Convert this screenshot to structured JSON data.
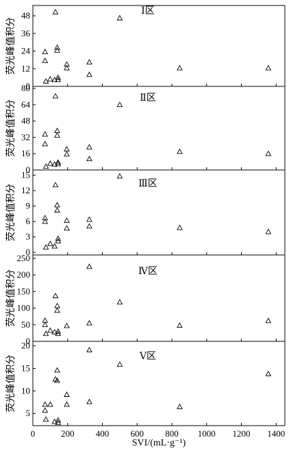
{
  "chart_data": [
    {
      "type": "scatter",
      "panel_label": "Ⅰ区",
      "ylabel": "荧光峰值积分",
      "xlim": [
        0,
        1450
      ],
      "ylim": [
        0,
        55
      ],
      "yticks": [
        0,
        12,
        24,
        36,
        48
      ],
      "marker": "triangle",
      "points": [
        {
          "x": 70,
          "y": 17.5
        },
        {
          "x": 70,
          "y": 23.5
        },
        {
          "x": 75,
          "y": 3.5
        },
        {
          "x": 100,
          "y": 5.0
        },
        {
          "x": 125,
          "y": 4.5
        },
        {
          "x": 130,
          "y": 50.5
        },
        {
          "x": 140,
          "y": 26.5
        },
        {
          "x": 140,
          "y": 24.5
        },
        {
          "x": 145,
          "y": 4.5
        },
        {
          "x": 145,
          "y": 6.0
        },
        {
          "x": 195,
          "y": 15.0
        },
        {
          "x": 195,
          "y": 12.5
        },
        {
          "x": 325,
          "y": 16.5
        },
        {
          "x": 325,
          "y": 8.0
        },
        {
          "x": 500,
          "y": 46.5
        },
        {
          "x": 845,
          "y": 12.5
        },
        {
          "x": 1355,
          "y": 12.5
        }
      ]
    },
    {
      "type": "scatter",
      "panel_label": "Ⅱ区",
      "ylabel": "荧光峰值积分",
      "xlim": [
        0,
        1450
      ],
      "ylim": [
        0,
        82
      ],
      "yticks": [
        0,
        16,
        32,
        48,
        64,
        80
      ],
      "marker": "triangle",
      "points": [
        {
          "x": 70,
          "y": 25.5
        },
        {
          "x": 70,
          "y": 35.0
        },
        {
          "x": 75,
          "y": 3.5
        },
        {
          "x": 100,
          "y": 6.5
        },
        {
          "x": 125,
          "y": 5.5
        },
        {
          "x": 130,
          "y": 72.5
        },
        {
          "x": 140,
          "y": 38.5
        },
        {
          "x": 140,
          "y": 34.0
        },
        {
          "x": 145,
          "y": 6.0
        },
        {
          "x": 145,
          "y": 7.5
        },
        {
          "x": 195,
          "y": 20.5
        },
        {
          "x": 195,
          "y": 15.5
        },
        {
          "x": 325,
          "y": 22.5
        },
        {
          "x": 325,
          "y": 11.0
        },
        {
          "x": 500,
          "y": 64.0
        },
        {
          "x": 845,
          "y": 18.0
        },
        {
          "x": 1355,
          "y": 16.0
        }
      ]
    },
    {
      "type": "scatter",
      "panel_label": "Ⅲ区",
      "ylabel": "荧光峰值积分",
      "xlim": [
        0,
        1450
      ],
      "ylim": [
        -0.5,
        16
      ],
      "yticks": [
        0,
        3,
        6,
        9,
        12,
        15
      ],
      "marker": "triangle",
      "points": [
        {
          "x": 70,
          "y": 6.0
        },
        {
          "x": 70,
          "y": 6.7
        },
        {
          "x": 75,
          "y": 1.0
        },
        {
          "x": 100,
          "y": 1.7
        },
        {
          "x": 125,
          "y": 1.2
        },
        {
          "x": 130,
          "y": 13.1
        },
        {
          "x": 140,
          "y": 9.2
        },
        {
          "x": 140,
          "y": 8.2
        },
        {
          "x": 145,
          "y": 2.2
        },
        {
          "x": 145,
          "y": 2.7
        },
        {
          "x": 195,
          "y": 6.2
        },
        {
          "x": 195,
          "y": 4.7
        },
        {
          "x": 325,
          "y": 6.4
        },
        {
          "x": 325,
          "y": 5.1
        },
        {
          "x": 500,
          "y": 14.8
        },
        {
          "x": 845,
          "y": 4.8
        },
        {
          "x": 1355,
          "y": 4.0
        }
      ]
    },
    {
      "type": "scatter",
      "panel_label": "Ⅳ区",
      "ylabel": "荧光峰值积分",
      "xlim": [
        0,
        1450
      ],
      "ylim": [
        0,
        260
      ],
      "yticks": [
        0,
        50,
        100,
        150,
        200,
        250
      ],
      "marker": "triangle",
      "points": [
        {
          "x": 70,
          "y": 50.0
        },
        {
          "x": 70,
          "y": 63.0
        },
        {
          "x": 75,
          "y": 23.0
        },
        {
          "x": 100,
          "y": 33.0
        },
        {
          "x": 125,
          "y": 28.0
        },
        {
          "x": 130,
          "y": 137.0
        },
        {
          "x": 140,
          "y": 107.0
        },
        {
          "x": 140,
          "y": 93.0
        },
        {
          "x": 145,
          "y": 23.0
        },
        {
          "x": 145,
          "y": 30.0
        },
        {
          "x": 195,
          "y": 47.0
        },
        {
          "x": 325,
          "y": 225.0
        },
        {
          "x": 325,
          "y": 55.0
        },
        {
          "x": 500,
          "y": 118.0
        },
        {
          "x": 845,
          "y": 48.0
        },
        {
          "x": 1355,
          "y": 62.0
        }
      ]
    },
    {
      "type": "scatter",
      "panel_label": "Ⅴ区",
      "ylabel": "荧光峰值积分",
      "xlabel": "SVI/(mL·g⁻¹)",
      "xlim": [
        0,
        1450
      ],
      "ylim": [
        2.3,
        21
      ],
      "yticks": [
        5,
        10,
        15,
        20
      ],
      "xticks": [
        0,
        200,
        400,
        600,
        800,
        1000,
        1200,
        1400
      ],
      "marker": "triangle",
      "points": [
        {
          "x": 70,
          "y": 7.0
        },
        {
          "x": 70,
          "y": 5.7
        },
        {
          "x": 75,
          "y": 3.7
        },
        {
          "x": 100,
          "y": 7.0
        },
        {
          "x": 125,
          "y": 3.2
        },
        {
          "x": 130,
          "y": 12.6
        },
        {
          "x": 140,
          "y": 14.6
        },
        {
          "x": 140,
          "y": 12.3
        },
        {
          "x": 145,
          "y": 3.0
        },
        {
          "x": 145,
          "y": 3.5
        },
        {
          "x": 195,
          "y": 9.2
        },
        {
          "x": 195,
          "y": 7.0
        },
        {
          "x": 325,
          "y": 19.1
        },
        {
          "x": 325,
          "y": 7.6
        },
        {
          "x": 500,
          "y": 15.9
        },
        {
          "x": 845,
          "y": 6.5
        },
        {
          "x": 1355,
          "y": 13.8
        }
      ]
    }
  ]
}
